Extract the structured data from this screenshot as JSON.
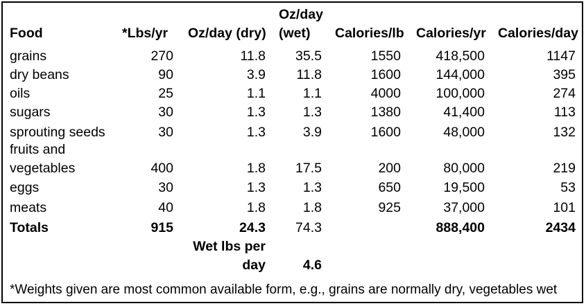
{
  "table": {
    "headers": {
      "food": "Food",
      "lbs_yr": "*Lbs/yr",
      "oz_day_dry": "Oz/day (dry)",
      "oz_day_wet_line1": "Oz/day",
      "oz_day_wet_line2": "(wet)",
      "calories_lb": "Calories/lb",
      "calories_yr": "Calories/yr",
      "calories_day": "Calories/day"
    },
    "rows": [
      {
        "food": "grains",
        "lbs_yr": "270",
        "oz_dry": "11.8",
        "oz_wet": "35.5",
        "cal_lb": "1550",
        "cal_yr": "418,500",
        "cal_day": "1147"
      },
      {
        "food": "dry beans",
        "lbs_yr": "90",
        "oz_dry": "3.9",
        "oz_wet": "11.8",
        "cal_lb": "1600",
        "cal_yr": "144,000",
        "cal_day": "395"
      },
      {
        "food": "oils",
        "lbs_yr": "25",
        "oz_dry": "1.1",
        "oz_wet": "1.1",
        "cal_lb": "4000",
        "cal_yr": "100,000",
        "cal_day": "274"
      },
      {
        "food": "sugars",
        "lbs_yr": "30",
        "oz_dry": "1.3",
        "oz_wet": "1.3",
        "cal_lb": "1380",
        "cal_yr": "41,400",
        "cal_day": "113"
      },
      {
        "food": "sprouting seeds",
        "lbs_yr": "30",
        "oz_dry": "1.3",
        "oz_wet": "3.9",
        "cal_lb": "1600",
        "cal_yr": "48,000",
        "cal_day": "132"
      },
      {
        "food_line1": "fruits and",
        "food_line2": "vegetables",
        "lbs_yr": "400",
        "oz_dry": "1.8",
        "oz_wet": "17.5",
        "cal_lb": "200",
        "cal_yr": "80,000",
        "cal_day": "219"
      },
      {
        "food": "eggs",
        "lbs_yr": "30",
        "oz_dry": "1.3",
        "oz_wet": "1.3",
        "cal_lb": "650",
        "cal_yr": "19,500",
        "cal_day": "53"
      },
      {
        "food": "meats",
        "lbs_yr": "40",
        "oz_dry": "1.8",
        "oz_wet": "1.8",
        "cal_lb": "925",
        "cal_yr": "37,000",
        "cal_day": "101"
      }
    ],
    "totals": {
      "label": "Totals",
      "lbs_yr": "915",
      "oz_dry": "24.3",
      "oz_wet": "74.3",
      "cal_yr": "888,400",
      "cal_day": "2434"
    },
    "wet_lbs": {
      "label_line1": "Wet lbs per",
      "label_line2": "day",
      "value": "4.6"
    }
  },
  "footnote": "*Weights given are most common available form, e.g., grains are normally dry, vegetables wet"
}
